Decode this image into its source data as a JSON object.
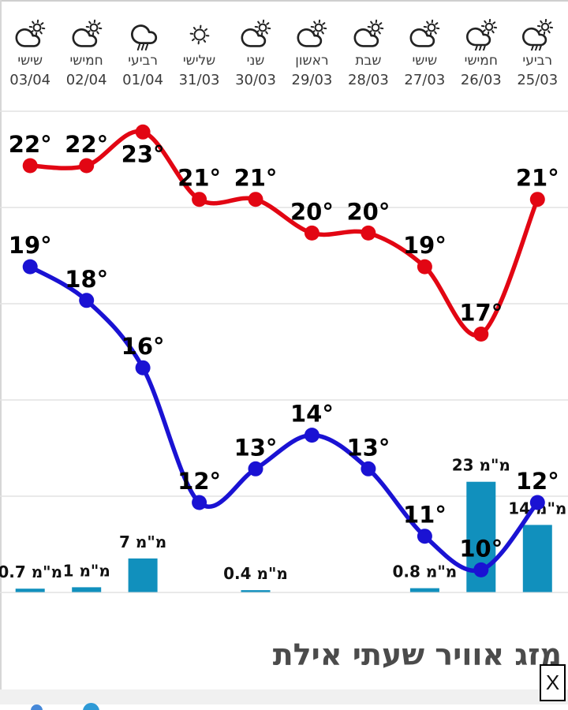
{
  "widget": {
    "title": "מזג אוויר שעתי אילת",
    "close_label": "X"
  },
  "colors": {
    "high_line": "#e20613",
    "low_line": "#1a12d3",
    "precip_bar": "#1190bd",
    "gridline": "#e2e2e2",
    "temp_label": "#000000",
    "precip_label": "#111111",
    "title_text": "#4b4b4b"
  },
  "chart_data": {
    "type": "line",
    "note": "10-day forecast, time axis runs right-to-left (RTL); columns listed left-to-right as displayed",
    "unit_temp": "°",
    "unit_precip": "מ\"מ",
    "columns": [
      {
        "day": "שישי",
        "date": "03/04",
        "icon": "partly-cloudy",
        "high": 22,
        "low": 19,
        "precip_mm": 0.7
      },
      {
        "day": "חמישי",
        "date": "02/04",
        "icon": "partly-cloudy",
        "high": 22,
        "low": 18,
        "precip_mm": 1
      },
      {
        "day": "רביעי",
        "date": "01/04",
        "icon": "rain",
        "high": 23,
        "low": 16,
        "precip_mm": 7
      },
      {
        "day": "שלישי",
        "date": "31/03",
        "icon": "sunny",
        "high": 21,
        "low": 12,
        "precip_mm": null
      },
      {
        "day": "שני",
        "date": "30/03",
        "icon": "partly-cloudy",
        "high": 21,
        "low": 13,
        "precip_mm": 0.4
      },
      {
        "day": "ראשון",
        "date": "29/03",
        "icon": "partly-cloudy",
        "high": 20,
        "low": 14,
        "precip_mm": null
      },
      {
        "day": "שבת",
        "date": "28/03",
        "icon": "partly-cloudy",
        "high": 20,
        "low": 13,
        "precip_mm": null
      },
      {
        "day": "שישי",
        "date": "27/03",
        "icon": "partly-cloudy",
        "high": 19,
        "low": 11,
        "precip_mm": 0.8
      },
      {
        "day": "חמישי",
        "date": "26/03",
        "icon": "partly-cloudy-rain",
        "high": 17,
        "low": 10,
        "precip_mm": 23
      },
      {
        "day": "רביעי",
        "date": "25/03",
        "icon": "partly-cloudy-rain",
        "high": 21,
        "low": 12,
        "precip_mm": 14
      }
    ],
    "series": [
      {
        "name": "high_temp",
        "values": [
          22,
          22,
          23,
          21,
          21,
          20,
          20,
          19,
          17,
          21
        ]
      },
      {
        "name": "low_temp",
        "values": [
          19,
          18,
          16,
          12,
          13,
          14,
          13,
          11,
          10,
          12
        ]
      },
      {
        "name": "precip_mm",
        "values": [
          0.7,
          1,
          7,
          null,
          0.4,
          null,
          null,
          0.8,
          23,
          14
        ]
      }
    ]
  }
}
